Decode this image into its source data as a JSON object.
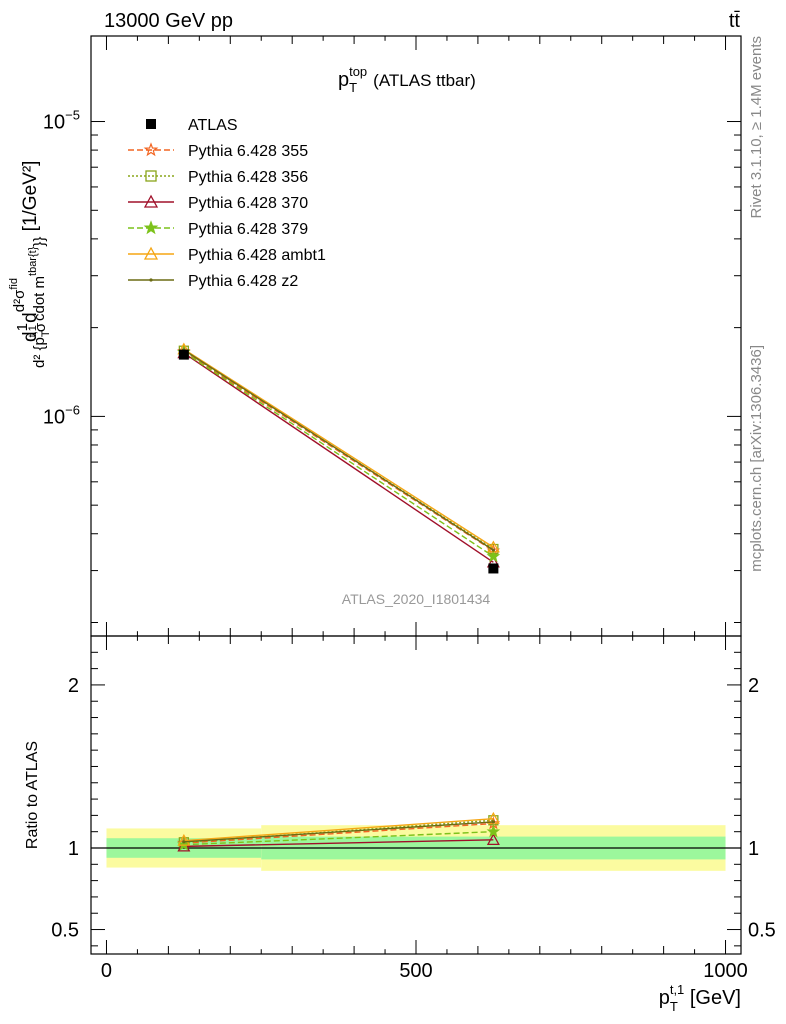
{
  "header": {
    "energy_label": "13000 GeV pp",
    "process_label": "tt̄"
  },
  "side_text": {
    "rivet": "Rivet 3.1.10, ≥ 1.4M events",
    "mcplots": "mcplots.cern.ch [arXiv:1306.3436]"
  },
  "chart_data": [
    {
      "type": "line",
      "panel": "main",
      "title": "p_T^top (ATLAS ttbar)",
      "title_parts": {
        "base": "p",
        "sub": "T",
        "sup": "top",
        "rest": "(ATLAS ttbar)"
      },
      "analysis_label": "ATLAS_2020_I1801434",
      "ylabel": "d 1/σ d d²σ^fid / d² {p_T^t,1 cdot m^tbar{t}}} [1/GeV²]",
      "ylabel_parts": {
        "lead": "d",
        "frac1_num": "1",
        "frac1_den": "σ",
        "d2": "d",
        "frac2_num": "d²σ",
        "frac2_num_sup": "fid",
        "frac2_den": "d² {p",
        "frac2_den_sub": "T",
        "frac2_den_sup": "t,1",
        "frac2_den_mid": " cdot m",
        "frac2_den_sup2": "tbar{t}",
        "frac2_den_end": "}}",
        "units": " [1/GeV²]"
      },
      "y_scale": "log",
      "ylim": [
        1.8e-07,
        1.95e-05
      ],
      "xlim": [
        -25,
        1025
      ],
      "yticks": [
        {
          "label": "10",
          "sup": "−6"
        },
        {
          "label": "10",
          "sup": "−5"
        }
      ],
      "x": [
        125,
        625
      ],
      "series": [
        {
          "name": "ATLAS",
          "color": "#000000",
          "marker": "filled-square",
          "dash": "none",
          "values": [
            1.62e-06,
            3.05e-07
          ],
          "x_err": [
            [
              0,
              250
            ],
            [
              250,
              1000
            ]
          ]
        },
        {
          "name": "Pythia 6.428 355",
          "color": "#f26522",
          "marker": "star-open",
          "dash": "dashed",
          "values": [
            1.66e-06,
            3.5e-07
          ]
        },
        {
          "name": "Pythia 6.428 356",
          "color": "#8aa51a",
          "marker": "square-open",
          "dash": "dotted",
          "values": [
            1.67e-06,
            3.55e-07
          ]
        },
        {
          "name": "Pythia 6.428 370",
          "color": "#a0102a",
          "marker": "triangle-open",
          "dash": "none",
          "values": [
            1.64e-06,
            3.2e-07
          ]
        },
        {
          "name": "Pythia 6.428 379",
          "color": "#7cc21a",
          "marker": "star-filled",
          "dash": "dashed",
          "values": [
            1.65e-06,
            3.35e-07
          ]
        },
        {
          "name": "Pythia 6.428 ambt1",
          "color": "#f5a614",
          "marker": "triangle-open",
          "dash": "none",
          "values": [
            1.69e-06,
            3.6e-07
          ]
        },
        {
          "name": "Pythia 6.428 z2",
          "color": "#6b6b14",
          "marker": "dot",
          "dash": "none",
          "values": [
            1.68e-06,
            3.52e-07
          ]
        }
      ],
      "legend_position": "top-left"
    },
    {
      "type": "line",
      "panel": "ratio",
      "ylabel": "Ratio to ATLAS",
      "xlabel": "p_T^t,1 [GeV]",
      "xlabel_parts": {
        "base": "p",
        "sub": "T",
        "sup": "t,1",
        "rest": " [GeV]"
      },
      "ylim": [
        0.35,
        2.3
      ],
      "xlim": [
        -25,
        1025
      ],
      "yticks": [
        0.5,
        1,
        2
      ],
      "ytick_labels": [
        "0.5",
        "1",
        "2"
      ],
      "xticks": [
        0,
        500,
        1000
      ],
      "xtick_labels": [
        "0",
        "500",
        "1000"
      ],
      "reference_line": 1,
      "uncertainty_bands": [
        {
          "x": [
            0,
            250
          ],
          "inner": [
            0.94,
            1.06
          ],
          "outer": [
            0.88,
            1.12
          ]
        },
        {
          "x": [
            250,
            1000
          ],
          "inner": [
            0.93,
            1.07
          ],
          "outer": [
            0.86,
            1.14
          ]
        }
      ],
      "band_colors": {
        "inner": "#9cf79c",
        "outer": "#fbfba0"
      },
      "x": [
        125,
        625
      ],
      "series": [
        {
          "name": "Pythia 6.428 355",
          "values": [
            1.03,
            1.15
          ]
        },
        {
          "name": "Pythia 6.428 356",
          "values": [
            1.035,
            1.17
          ]
        },
        {
          "name": "Pythia 6.428 370",
          "values": [
            1.01,
            1.05
          ]
        },
        {
          "name": "Pythia 6.428 379",
          "values": [
            1.02,
            1.1
          ]
        },
        {
          "name": "Pythia 6.428 ambt1",
          "values": [
            1.045,
            1.18
          ]
        },
        {
          "name": "Pythia 6.428 z2",
          "values": [
            1.038,
            1.16
          ]
        }
      ]
    }
  ]
}
